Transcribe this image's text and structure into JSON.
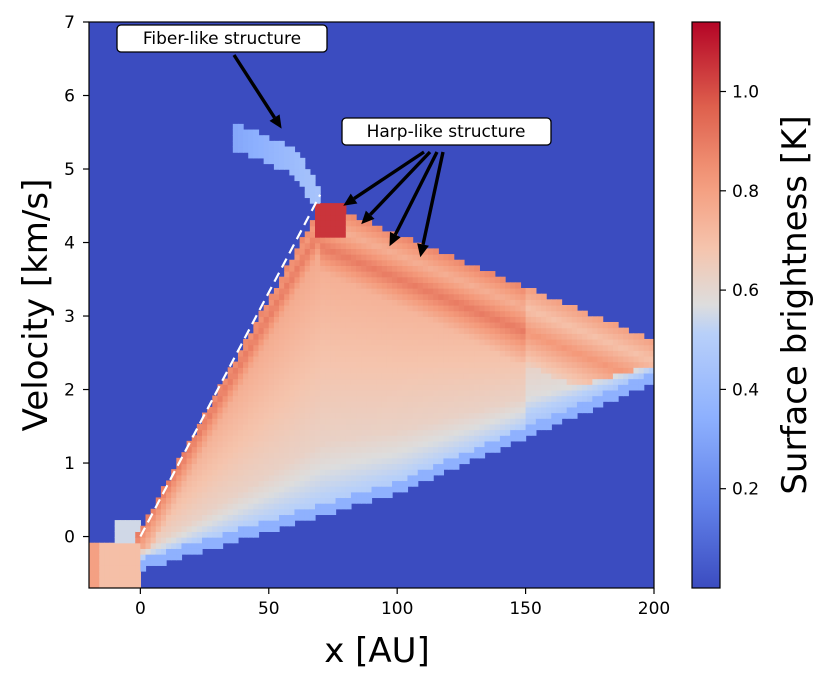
{
  "chart_data": {
    "type": "heatmap",
    "xlabel": "x [AU]",
    "ylabel": "Velocity [km/s]",
    "xlim": [
      -20,
      200
    ],
    "ylim": [
      -0.7,
      7
    ],
    "x_ticks": [
      "0",
      "50",
      "100",
      "150",
      "200"
    ],
    "y_ticks": [
      "0",
      "1",
      "2",
      "3",
      "4",
      "5",
      "6",
      "7"
    ],
    "x_tick_values": [
      0,
      50,
      100,
      150,
      200
    ],
    "y_tick_values": [
      0,
      1,
      2,
      3,
      4,
      5,
      6,
      7
    ],
    "colorbar": {
      "label": "Surface brightness [K]",
      "colormap": "coolwarm",
      "range": [
        0,
        1.14
      ],
      "ticks": [
        "0.2",
        "0.4",
        "0.6",
        "0.8",
        "1.0"
      ],
      "tick_values": [
        0.2,
        0.4,
        0.6,
        0.8,
        1.0
      ]
    },
    "background_value": 0,
    "reference_line": {
      "style": "dashed",
      "color": "#ffffff",
      "points": [
        [
          0,
          0
        ],
        [
          70,
          4.65
        ]
      ]
    },
    "annotations": [
      {
        "text": "Fiber-like structure",
        "arrow_targets": [
          [
            55,
            5.55
          ]
        ]
      },
      {
        "text": "Harp-like structure",
        "arrow_targets": [
          [
            79,
            4.5
          ],
          [
            86,
            4.25
          ],
          [
            97,
            3.95
          ],
          [
            109,
            3.8
          ]
        ]
      }
    ],
    "colors": {
      "low": "#3b4cc0",
      "mid": "#dddddd",
      "high": "#b40426"
    }
  }
}
